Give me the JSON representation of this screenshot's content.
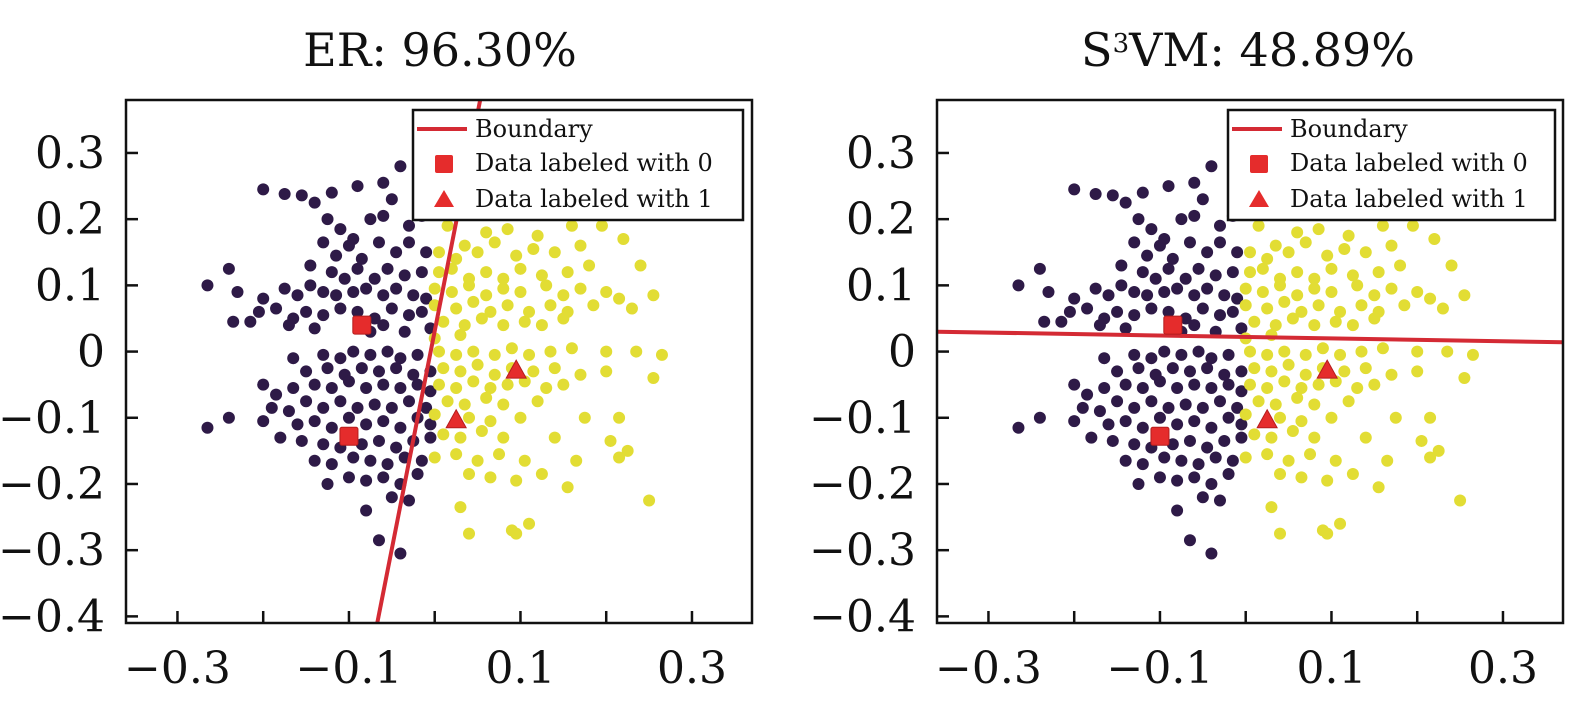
{
  "colors": {
    "class0": "#2e1a47",
    "class1": "#e2dd34",
    "labeled": "#e52c2c",
    "boundary": "#d42a34",
    "frame": "#111111"
  },
  "chart_data": [
    {
      "type": "scatter",
      "title": "ER: 96.30%",
      "accuracy_percent": 96.3,
      "xlim": [
        -0.36,
        0.37
      ],
      "ylim": [
        -0.41,
        0.38
      ],
      "xticks": [
        -0.3,
        -0.2,
        -0.1,
        0,
        0.1,
        0.2,
        0.3
      ],
      "xtick_labels": [
        "−0.3",
        "",
        "−0.1",
        "",
        "0.1",
        "",
        "0.3"
      ],
      "yticks": [
        0.3,
        0.2,
        0.1,
        0,
        -0.1,
        -0.2,
        -0.3,
        -0.4
      ],
      "ytick_labels": [
        "0.3",
        "0.2",
        "0.1",
        "0",
        "−0.1",
        "−0.2",
        "−0.3",
        "−0.4"
      ],
      "boundary": [
        [
          -0.067,
          -0.41
        ],
        [
          0.053,
          0.38
        ]
      ],
      "legend": {
        "position": "top-right",
        "entries": [
          "Boundary",
          "Data labeled with 0",
          "Data labeled with 1"
        ]
      },
      "labeled_class0": [
        [
          -0.085,
          0.04
        ],
        [
          -0.1,
          -0.128
        ]
      ],
      "labeled_class1": [
        [
          0.095,
          -0.028
        ],
        [
          0.025,
          -0.103
        ]
      ],
      "boundary_slope_note": "separates purple (left) from yellow (right)"
    },
    {
      "type": "scatter",
      "title_parts": [
        "S",
        "3",
        "VM: 48.89%"
      ],
      "title": "S3VM: 48.89%",
      "accuracy_percent": 48.89,
      "xlim": [
        -0.36,
        0.37
      ],
      "ylim": [
        -0.41,
        0.38
      ],
      "xticks": [
        -0.3,
        -0.2,
        -0.1,
        0,
        0.1,
        0.2,
        0.3
      ],
      "xtick_labels": [
        "−0.3",
        "",
        "−0.1",
        "",
        "0.1",
        "",
        "0.3"
      ],
      "yticks": [
        0.3,
        0.2,
        0.1,
        0,
        -0.1,
        -0.2,
        -0.3,
        -0.4
      ],
      "ytick_labels": [
        "0.3",
        "0.2",
        "0.1",
        "0",
        "−0.1",
        "−0.2",
        "−0.3",
        "−0.4"
      ],
      "boundary": [
        [
          -0.36,
          0.03
        ],
        [
          0.37,
          0.014
        ]
      ],
      "legend": {
        "position": "top-right",
        "entries": [
          "Boundary",
          "Data labeled with 0",
          "Data labeled with 1"
        ]
      },
      "labeled_class0": [
        [
          -0.085,
          0.04
        ],
        [
          -0.1,
          -0.128
        ]
      ],
      "labeled_class1": [
        [
          0.095,
          -0.028
        ],
        [
          0.025,
          -0.103
        ]
      ]
    }
  ],
  "points": {
    "class0": [
      [
        -0.2,
        0.245
      ],
      [
        -0.175,
        0.238
      ],
      [
        -0.155,
        0.236
      ],
      [
        -0.14,
        0.225
      ],
      [
        -0.12,
        0.24
      ],
      [
        -0.09,
        0.25
      ],
      [
        -0.06,
        0.255
      ],
      [
        -0.04,
        0.28
      ],
      [
        -0.125,
        0.2
      ],
      [
        -0.11,
        0.185
      ],
      [
        -0.095,
        0.17
      ],
      [
        -0.075,
        0.2
      ],
      [
        -0.06,
        0.205
      ],
      [
        -0.03,
        0.19
      ],
      [
        -0.015,
        0.205
      ],
      [
        -0.05,
        0.23
      ],
      [
        -0.13,
        0.165
      ],
      [
        -0.115,
        0.145
      ],
      [
        -0.1,
        0.16
      ],
      [
        -0.085,
        0.14
      ],
      [
        -0.065,
        0.165
      ],
      [
        -0.045,
        0.15
      ],
      [
        -0.03,
        0.165
      ],
      [
        -0.01,
        0.15
      ],
      [
        -0.145,
        0.13
      ],
      [
        -0.12,
        0.12
      ],
      [
        -0.105,
        0.11
      ],
      [
        -0.09,
        0.125
      ],
      [
        -0.07,
        0.11
      ],
      [
        -0.055,
        0.125
      ],
      [
        -0.035,
        0.115
      ],
      [
        -0.015,
        0.12
      ],
      [
        -0.265,
        0.1
      ],
      [
        -0.24,
        0.125
      ],
      [
        -0.23,
        0.09
      ],
      [
        -0.2,
        0.08
      ],
      [
        -0.175,
        0.095
      ],
      [
        -0.16,
        0.085
      ],
      [
        -0.145,
        0.1
      ],
      [
        -0.13,
        0.09
      ],
      [
        -0.115,
        0.085
      ],
      [
        -0.095,
        0.09
      ],
      [
        -0.08,
        0.095
      ],
      [
        -0.06,
        0.085
      ],
      [
        -0.045,
        0.095
      ],
      [
        -0.025,
        0.085
      ],
      [
        -0.01,
        0.08
      ],
      [
        -0.205,
        0.06
      ],
      [
        -0.185,
        0.065
      ],
      [
        -0.165,
        0.05
      ],
      [
        -0.15,
        0.06
      ],
      [
        -0.13,
        0.055
      ],
      [
        -0.11,
        0.065
      ],
      [
        -0.09,
        0.06
      ],
      [
        -0.07,
        0.05
      ],
      [
        -0.05,
        0.065
      ],
      [
        -0.03,
        0.055
      ],
      [
        -0.015,
        0.06
      ],
      [
        -0.235,
        0.045
      ],
      [
        -0.215,
        0.045
      ],
      [
        -0.17,
        0.04
      ],
      [
        -0.14,
        0.035
      ],
      [
        -0.075,
        0.03
      ],
      [
        -0.06,
        0.04
      ],
      [
        -0.035,
        0.03
      ],
      [
        -0.005,
        0.035
      ],
      [
        -0.165,
        -0.01
      ],
      [
        -0.13,
        -0.005
      ],
      [
        -0.11,
        -0.01
      ],
      [
        -0.095,
        0.0
      ],
      [
        -0.075,
        -0.005
      ],
      [
        -0.055,
        0.0
      ],
      [
        -0.04,
        -0.01
      ],
      [
        -0.02,
        -0.005
      ],
      [
        -0.15,
        -0.03
      ],
      [
        -0.125,
        -0.025
      ],
      [
        -0.105,
        -0.035
      ],
      [
        -0.085,
        -0.025
      ],
      [
        -0.065,
        -0.03
      ],
      [
        -0.045,
        -0.025
      ],
      [
        -0.025,
        -0.035
      ],
      [
        -0.005,
        -0.03
      ],
      [
        -0.2,
        -0.05
      ],
      [
        -0.185,
        -0.065
      ],
      [
        -0.165,
        -0.055
      ],
      [
        -0.14,
        -0.05
      ],
      [
        -0.12,
        -0.055
      ],
      [
        -0.1,
        -0.045
      ],
      [
        -0.08,
        -0.055
      ],
      [
        -0.06,
        -0.05
      ],
      [
        -0.04,
        -0.055
      ],
      [
        -0.02,
        -0.05
      ],
      [
        -0.005,
        -0.06
      ],
      [
        -0.19,
        -0.085
      ],
      [
        -0.17,
        -0.09
      ],
      [
        -0.15,
        -0.075
      ],
      [
        -0.13,
        -0.085
      ],
      [
        -0.11,
        -0.075
      ],
      [
        -0.09,
        -0.085
      ],
      [
        -0.07,
        -0.08
      ],
      [
        -0.05,
        -0.085
      ],
      [
        -0.03,
        -0.075
      ],
      [
        -0.01,
        -0.085
      ],
      [
        -0.24,
        -0.1
      ],
      [
        -0.2,
        -0.105
      ],
      [
        -0.16,
        -0.11
      ],
      [
        -0.14,
        -0.105
      ],
      [
        -0.12,
        -0.115
      ],
      [
        -0.1,
        -0.1
      ],
      [
        -0.08,
        -0.11
      ],
      [
        -0.06,
        -0.105
      ],
      [
        -0.04,
        -0.115
      ],
      [
        -0.02,
        -0.1
      ],
      [
        -0.005,
        -0.11
      ],
      [
        -0.265,
        -0.115
      ],
      [
        -0.18,
        -0.13
      ],
      [
        -0.155,
        -0.135
      ],
      [
        -0.13,
        -0.14
      ],
      [
        -0.11,
        -0.145
      ],
      [
        -0.085,
        -0.14
      ],
      [
        -0.065,
        -0.135
      ],
      [
        -0.045,
        -0.145
      ],
      [
        -0.025,
        -0.135
      ],
      [
        -0.005,
        -0.13
      ],
      [
        -0.14,
        -0.165
      ],
      [
        -0.12,
        -0.17
      ],
      [
        -0.095,
        -0.16
      ],
      [
        -0.075,
        -0.165
      ],
      [
        -0.055,
        -0.17
      ],
      [
        -0.035,
        -0.16
      ],
      [
        -0.015,
        -0.165
      ],
      [
        -0.1,
        -0.19
      ],
      [
        -0.08,
        -0.195
      ],
      [
        -0.06,
        -0.19
      ],
      [
        -0.04,
        -0.2
      ],
      [
        -0.02,
        -0.185
      ],
      [
        -0.125,
        -0.2
      ],
      [
        -0.05,
        -0.22
      ],
      [
        -0.03,
        -0.225
      ],
      [
        -0.065,
        -0.285
      ],
      [
        -0.04,
        -0.305
      ],
      [
        -0.08,
        -0.24
      ]
    ],
    "class1": [
      [
        0.06,
        0.18
      ],
      [
        0.085,
        0.185
      ],
      [
        0.12,
        0.175
      ],
      [
        0.16,
        0.19
      ],
      [
        0.195,
        0.19
      ],
      [
        0.22,
        0.17
      ],
      [
        0.015,
        0.19
      ],
      [
        0.035,
        0.16
      ],
      [
        0.005,
        0.15
      ],
      [
        0.025,
        0.14
      ],
      [
        0.05,
        0.15
      ],
      [
        0.07,
        0.165
      ],
      [
        0.095,
        0.145
      ],
      [
        0.115,
        0.155
      ],
      [
        0.14,
        0.15
      ],
      [
        0.17,
        0.16
      ],
      [
        0.005,
        0.12
      ],
      [
        0.02,
        0.125
      ],
      [
        0.04,
        0.11
      ],
      [
        0.06,
        0.12
      ],
      [
        0.08,
        0.11
      ],
      [
        0.1,
        0.125
      ],
      [
        0.125,
        0.115
      ],
      [
        0.155,
        0.12
      ],
      [
        0.18,
        0.13
      ],
      [
        0.24,
        0.13
      ],
      [
        0.0,
        0.095
      ],
      [
        0.02,
        0.09
      ],
      [
        0.04,
        0.1
      ],
      [
        0.06,
        0.085
      ],
      [
        0.08,
        0.095
      ],
      [
        0.1,
        0.09
      ],
      [
        0.13,
        0.1
      ],
      [
        0.15,
        0.085
      ],
      [
        0.17,
        0.095
      ],
      [
        0.2,
        0.09
      ],
      [
        0.255,
        0.085
      ],
      [
        0.0,
        0.07
      ],
      [
        0.025,
        0.065
      ],
      [
        0.045,
        0.075
      ],
      [
        0.065,
        0.06
      ],
      [
        0.085,
        0.07
      ],
      [
        0.11,
        0.06
      ],
      [
        0.135,
        0.07
      ],
      [
        0.155,
        0.06
      ],
      [
        0.185,
        0.07
      ],
      [
        0.215,
        0.08
      ],
      [
        0.23,
        0.065
      ],
      [
        0.01,
        0.045
      ],
      [
        0.035,
        0.04
      ],
      [
        0.055,
        0.05
      ],
      [
        0.08,
        0.04
      ],
      [
        0.105,
        0.045
      ],
      [
        0.125,
        0.04
      ],
      [
        0.15,
        0.05
      ],
      [
        0.0,
        0.02
      ],
      [
        0.03,
        0.025
      ],
      [
        0.005,
        0.0
      ],
      [
        0.025,
        -0.005
      ],
      [
        0.045,
        0.0
      ],
      [
        0.07,
        -0.005
      ],
      [
        0.09,
        0.005
      ],
      [
        0.11,
        -0.005
      ],
      [
        0.135,
        0.0
      ],
      [
        0.16,
        0.005
      ],
      [
        0.2,
        0.0
      ],
      [
        0.235,
        0.0
      ],
      [
        0.265,
        -0.005
      ],
      [
        0.01,
        -0.025
      ],
      [
        0.03,
        -0.03
      ],
      [
        0.05,
        -0.02
      ],
      [
        0.07,
        -0.035
      ],
      [
        0.09,
        -0.025
      ],
      [
        0.115,
        -0.03
      ],
      [
        0.14,
        -0.025
      ],
      [
        0.17,
        -0.035
      ],
      [
        0.2,
        -0.03
      ],
      [
        0.255,
        -0.04
      ],
      [
        0.005,
        -0.05
      ],
      [
        0.025,
        -0.055
      ],
      [
        0.045,
        -0.045
      ],
      [
        0.065,
        -0.055
      ],
      [
        0.085,
        -0.05
      ],
      [
        0.105,
        -0.045
      ],
      [
        0.13,
        -0.055
      ],
      [
        0.15,
        -0.05
      ],
      [
        0.015,
        -0.075
      ],
      [
        0.035,
        -0.08
      ],
      [
        0.06,
        -0.07
      ],
      [
        0.08,
        -0.08
      ],
      [
        0.12,
        -0.075
      ],
      [
        0.0,
        -0.095
      ],
      [
        0.04,
        -0.1
      ],
      [
        0.065,
        -0.105
      ],
      [
        0.1,
        -0.1
      ],
      [
        0.175,
        -0.1
      ],
      [
        0.215,
        -0.1
      ],
      [
        0.01,
        -0.125
      ],
      [
        0.03,
        -0.13
      ],
      [
        0.055,
        -0.12
      ],
      [
        0.08,
        -0.13
      ],
      [
        0.14,
        -0.13
      ],
      [
        0.205,
        -0.135
      ],
      [
        0.0,
        -0.16
      ],
      [
        0.025,
        -0.155
      ],
      [
        0.05,
        -0.165
      ],
      [
        0.075,
        -0.155
      ],
      [
        0.105,
        -0.165
      ],
      [
        0.165,
        -0.165
      ],
      [
        0.225,
        -0.15
      ],
      [
        0.215,
        -0.16
      ],
      [
        0.04,
        -0.185
      ],
      [
        0.065,
        -0.19
      ],
      [
        0.095,
        -0.195
      ],
      [
        0.125,
        -0.185
      ],
      [
        0.03,
        -0.235
      ],
      [
        0.155,
        -0.205
      ],
      [
        0.25,
        -0.225
      ],
      [
        0.04,
        -0.275
      ],
      [
        0.09,
        -0.27
      ],
      [
        0.11,
        -0.26
      ],
      [
        0.095,
        -0.275
      ]
    ]
  }
}
